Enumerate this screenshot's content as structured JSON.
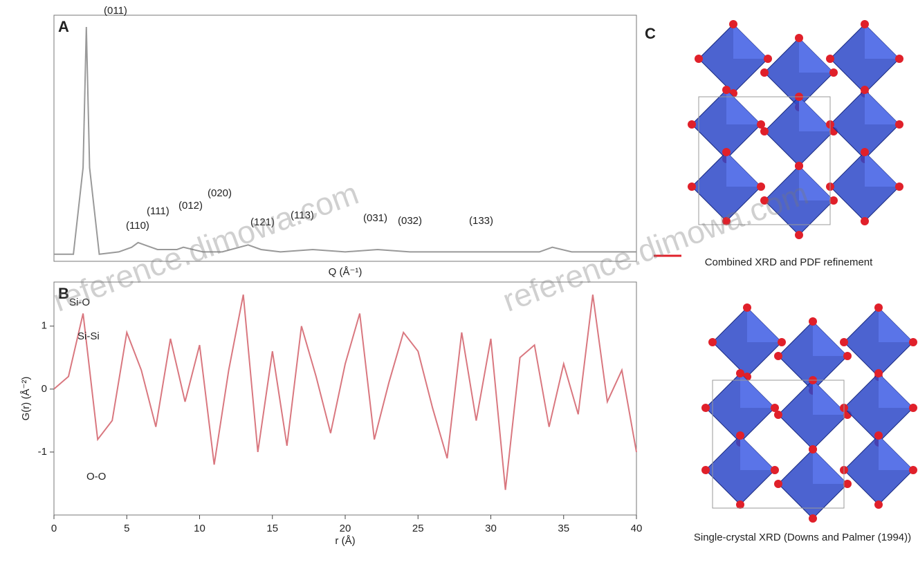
{
  "chart_data": [
    {
      "type": "line",
      "panel": "A",
      "x_label": "Q (Å⁻¹)",
      "x": [
        1.0,
        1.3,
        1.45,
        1.5,
        1.55,
        1.7,
        2.0,
        2.2,
        2.3,
        2.4,
        2.6,
        2.9,
        3.0,
        3.3,
        3.6,
        4.0,
        4.2,
        4.5,
        5.0,
        5.5,
        6.0,
        6.5,
        7.0,
        7.5,
        8.0,
        8.5,
        8.7,
        9.0,
        9.5,
        10.0
      ],
      "values": [
        3,
        3,
        40,
        100,
        40,
        3,
        4,
        6,
        8,
        7,
        5,
        5,
        6,
        4,
        4,
        7,
        5,
        4,
        5,
        4,
        5,
        4,
        4,
        4,
        4,
        4,
        6,
        4,
        4,
        4
      ],
      "color": "#999999",
      "xlim": [
        1.0,
        10.0
      ],
      "ylim": [
        0,
        105
      ],
      "annotations": [
        "(011)",
        "(110)",
        "(111)",
        "(012)",
        "(020)",
        "(121)",
        "(113)",
        "(031)",
        "(032)",
        "(133)"
      ]
    },
    {
      "type": "line",
      "panel": "B",
      "x_label": "r (Å)",
      "y_label": "G(r) (Å⁻²)",
      "x": [
        0,
        1,
        2,
        3,
        4,
        5,
        6,
        7,
        8,
        9,
        10,
        11,
        12,
        13,
        14,
        15,
        16,
        17,
        18,
        19,
        20,
        21,
        22,
        23,
        24,
        25,
        26,
        27,
        28,
        29,
        30,
        31,
        32,
        33,
        34,
        35,
        36,
        37,
        38,
        39,
        40
      ],
      "values": [
        0,
        0.2,
        1.2,
        -0.8,
        -0.5,
        0.9,
        0.3,
        -0.6,
        0.8,
        -0.2,
        0.7,
        -1.2,
        0.3,
        1.5,
        -1.0,
        0.6,
        -0.9,
        1.0,
        0.2,
        -0.7,
        0.4,
        1.2,
        -0.8,
        0.1,
        0.9,
        0.6,
        -0.3,
        -1.1,
        0.9,
        -0.5,
        0.8,
        -1.6,
        0.5,
        0.7,
        -0.6,
        0.4,
        -0.4,
        1.5,
        -0.2,
        0.3,
        -1.0
      ],
      "color": "#d9777f",
      "xlim": [
        0,
        40
      ],
      "ylim": [
        -2,
        1.7
      ],
      "xticks": [
        0,
        5,
        10,
        15,
        20,
        25,
        30,
        35,
        40
      ],
      "yticks": [
        -1,
        0,
        1
      ],
      "annotations": [
        "Si-O",
        "Si-Si",
        "O-O"
      ]
    }
  ],
  "panel_c": {
    "label": "C",
    "captions": [
      "Combined XRD and PDF refinement",
      "Single-crystal XRD (Downs and Palmer (1994))"
    ]
  },
  "watermarks": [
    "reference.dimowa.com",
    "reference.dimowa.com"
  ]
}
